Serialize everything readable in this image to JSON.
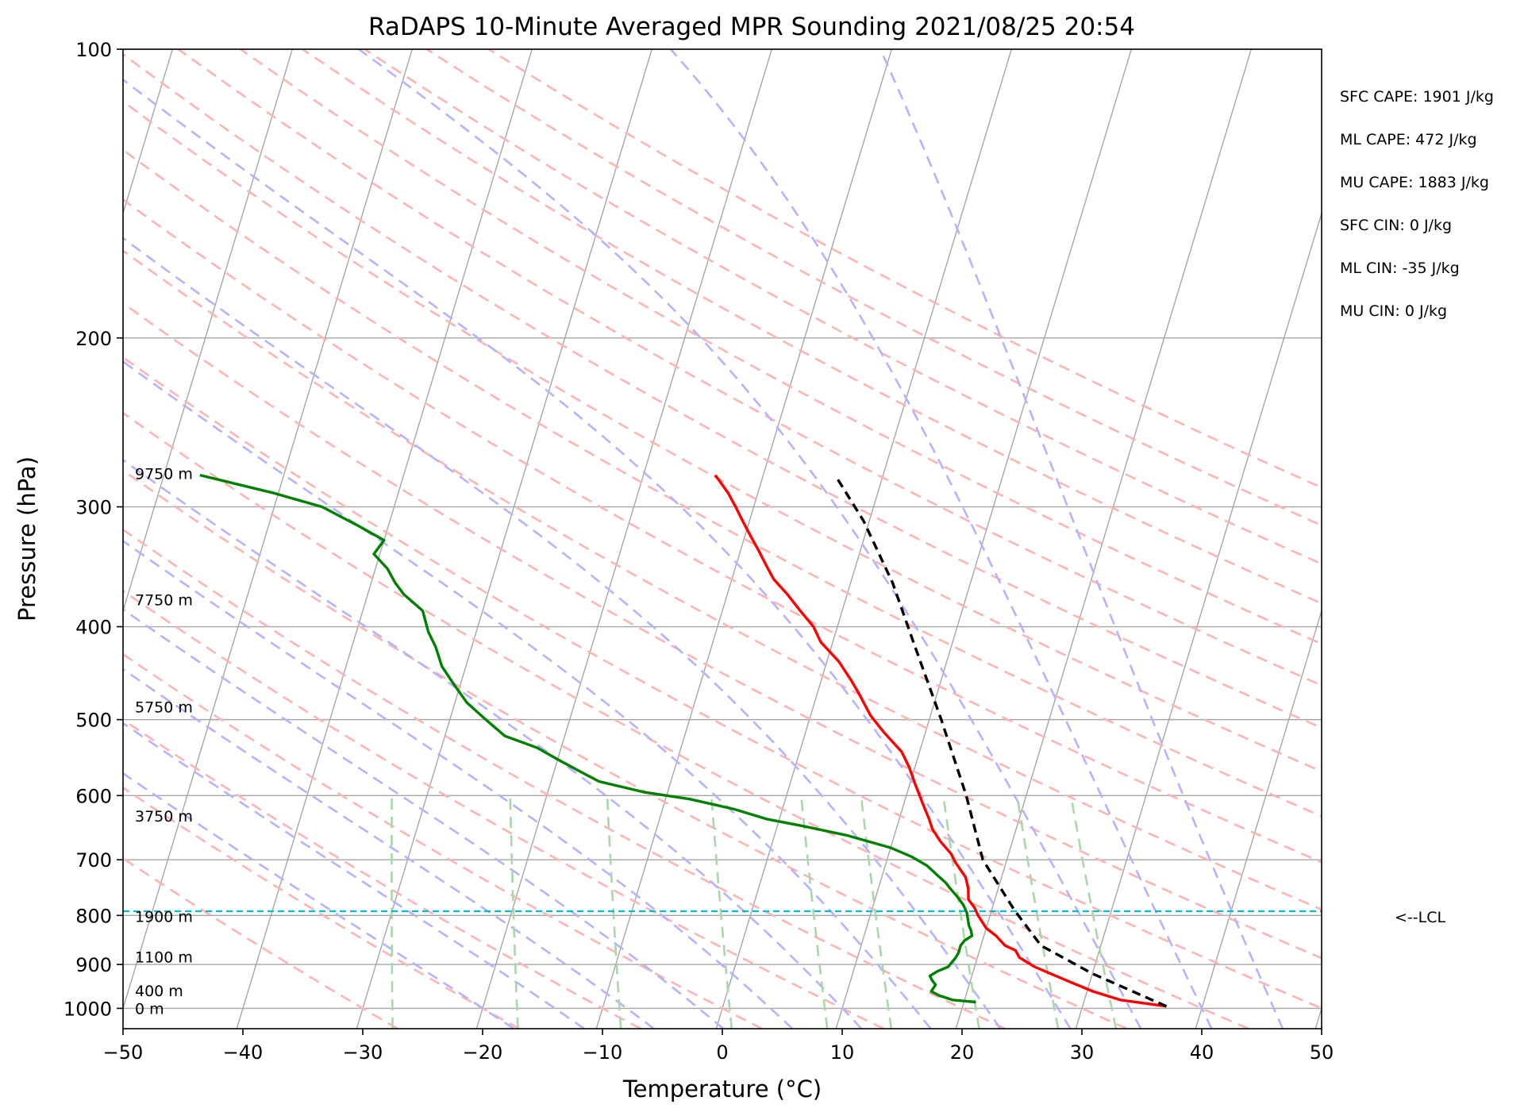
{
  "chart_data": {
    "type": "line",
    "title": "RaDAPS 10-Minute Averaged MPR Sounding 2021/08/25 20:54",
    "xlabel": "Temperature (°C)",
    "ylabel": "Pressure (hPa)",
    "xlim": [
      -50,
      50
    ],
    "ylim": [
      1050,
      100
    ],
    "y_scale": "log",
    "x_ticks": [
      -50,
      -40,
      -30,
      -20,
      -10,
      0,
      10,
      20,
      30,
      40,
      50
    ],
    "x_tick_labels": [
      "−50",
      "−40",
      "−30",
      "−20",
      "−10",
      "0",
      "10",
      "20",
      "30",
      "40",
      "50"
    ],
    "y_ticks": [
      100,
      200,
      300,
      400,
      500,
      600,
      700,
      800,
      900,
      1000
    ],
    "y_tick_labels": [
      "100",
      "200",
      "300",
      "400",
      "500",
      "600",
      "700",
      "800",
      "900",
      "1000"
    ],
    "grid": true,
    "legend": "none",
    "series": [
      {
        "color": "#ff0000",
        "points": [
          [
            37,
            995
          ],
          [
            33,
            980
          ],
          [
            30.5,
            960
          ],
          [
            28.5,
            940
          ],
          [
            26.5,
            920
          ],
          [
            25,
            905
          ],
          [
            23.5,
            885
          ],
          [
            23,
            870
          ],
          [
            22,
            860
          ],
          [
            21,
            840
          ],
          [
            20,
            825
          ],
          [
            19,
            800
          ],
          [
            18.5,
            785
          ],
          [
            17.8,
            770
          ],
          [
            17.5,
            750
          ],
          [
            17,
            730
          ],
          [
            15.8,
            705
          ],
          [
            15.2,
            690
          ],
          [
            14,
            670
          ],
          [
            13,
            650
          ],
          [
            12.5,
            635
          ],
          [
            11.5,
            610
          ],
          [
            10.5,
            585
          ],
          [
            9.5,
            560
          ],
          [
            8.5,
            540
          ],
          [
            6.5,
            515
          ],
          [
            5,
            495
          ],
          [
            3.5,
            470
          ],
          [
            2.5,
            455
          ],
          [
            1,
            435
          ],
          [
            -1,
            415
          ],
          [
            -2,
            400
          ],
          [
            -3.5,
            385
          ],
          [
            -5,
            370
          ],
          [
            -6.5,
            357
          ],
          [
            -7.5,
            345
          ],
          [
            -8.5,
            333
          ],
          [
            -9.5,
            322
          ],
          [
            -10.5,
            311
          ],
          [
            -11.5,
            300
          ],
          [
            -12.5,
            290
          ],
          [
            -14,
            278
          ]
        ]
      },
      {
        "color": "#008000",
        "points": [
          [
            21,
            985
          ],
          [
            19,
            980
          ],
          [
            17.8,
            970
          ],
          [
            17,
            960
          ],
          [
            17.2,
            945
          ],
          [
            16.8,
            935
          ],
          [
            16.5,
            925
          ],
          [
            17,
            915
          ],
          [
            17.8,
            905
          ],
          [
            18,
            895
          ],
          [
            18.2,
            885
          ],
          [
            18.3,
            875
          ],
          [
            18.3,
            860
          ],
          [
            18.5,
            850
          ],
          [
            19,
            840
          ],
          [
            18.8,
            830
          ],
          [
            18.5,
            820
          ],
          [
            18.2,
            805
          ],
          [
            18,
            795
          ],
          [
            17.5,
            780
          ],
          [
            16.8,
            765
          ],
          [
            16,
            750
          ],
          [
            15.5,
            740
          ],
          [
            14.5,
            725
          ],
          [
            13.5,
            710
          ],
          [
            12,
            695
          ],
          [
            10,
            680
          ],
          [
            6,
            660
          ],
          [
            2,
            645
          ],
          [
            -1,
            635
          ],
          [
            -4,
            620
          ],
          [
            -8,
            605
          ],
          [
            -12,
            595
          ],
          [
            -16,
            580
          ],
          [
            -18,
            565
          ],
          [
            -20,
            550
          ],
          [
            -22,
            535
          ],
          [
            -25,
            520
          ],
          [
            -27,
            500
          ],
          [
            -29,
            480
          ],
          [
            -30.5,
            460
          ],
          [
            -32,
            440
          ],
          [
            -33,
            420
          ],
          [
            -34,
            405
          ],
          [
            -35,
            385
          ],
          [
            -37,
            370
          ],
          [
            -38,
            360
          ],
          [
            -39,
            348
          ],
          [
            -40.5,
            336
          ],
          [
            -40,
            325
          ],
          [
            -42.5,
            314
          ],
          [
            -46,
            300
          ],
          [
            -50.5,
            290
          ],
          [
            -57,
            278
          ]
        ]
      },
      {
        "color": "#000000",
        "dashed": true,
        "points": [
          [
            37,
            995
          ],
          [
            30,
            920
          ],
          [
            25,
            860
          ],
          [
            21.9,
            790
          ],
          [
            18,
            700
          ],
          [
            15,
            600
          ],
          [
            11,
            500
          ],
          [
            7,
            420
          ],
          [
            3.5,
            360
          ],
          [
            -0.5,
            310
          ],
          [
            -4,
            278
          ]
        ]
      }
    ],
    "height_labels": [
      {
        "text": "0 m",
        "p": 1000
      },
      {
        "text": "400 m",
        "p": 958
      },
      {
        "text": "1100 m",
        "p": 884
      },
      {
        "text": "1900 m",
        "p": 802
      },
      {
        "text": "3750 m",
        "p": 630
      },
      {
        "text": "5750 m",
        "p": 485
      },
      {
        "text": "7750 m",
        "p": 375
      },
      {
        "text": "9750 m",
        "p": 277
      }
    ],
    "lcl": {
      "p": 792,
      "label": "<--LCL"
    },
    "stats": [
      "SFC CAPE: 1901 J/kg",
      "ML CAPE: 472 J/kg",
      "MU CAPE: 1883 J/kg",
      "SFC CIN: 0 J/kg",
      "ML CIN: -35 J/kg",
      "MU CIN: 0 J/kg"
    ],
    "colors": {
      "skewed_isotherms": "#a6a6a6",
      "dry_adiabats": "#ffb3b3",
      "moist_adiabats": "#b3b3ff",
      "mixing_ratio": "#a8d8a8",
      "lcl": "#00bcd4",
      "grid": "#a6a6a6"
    }
  }
}
